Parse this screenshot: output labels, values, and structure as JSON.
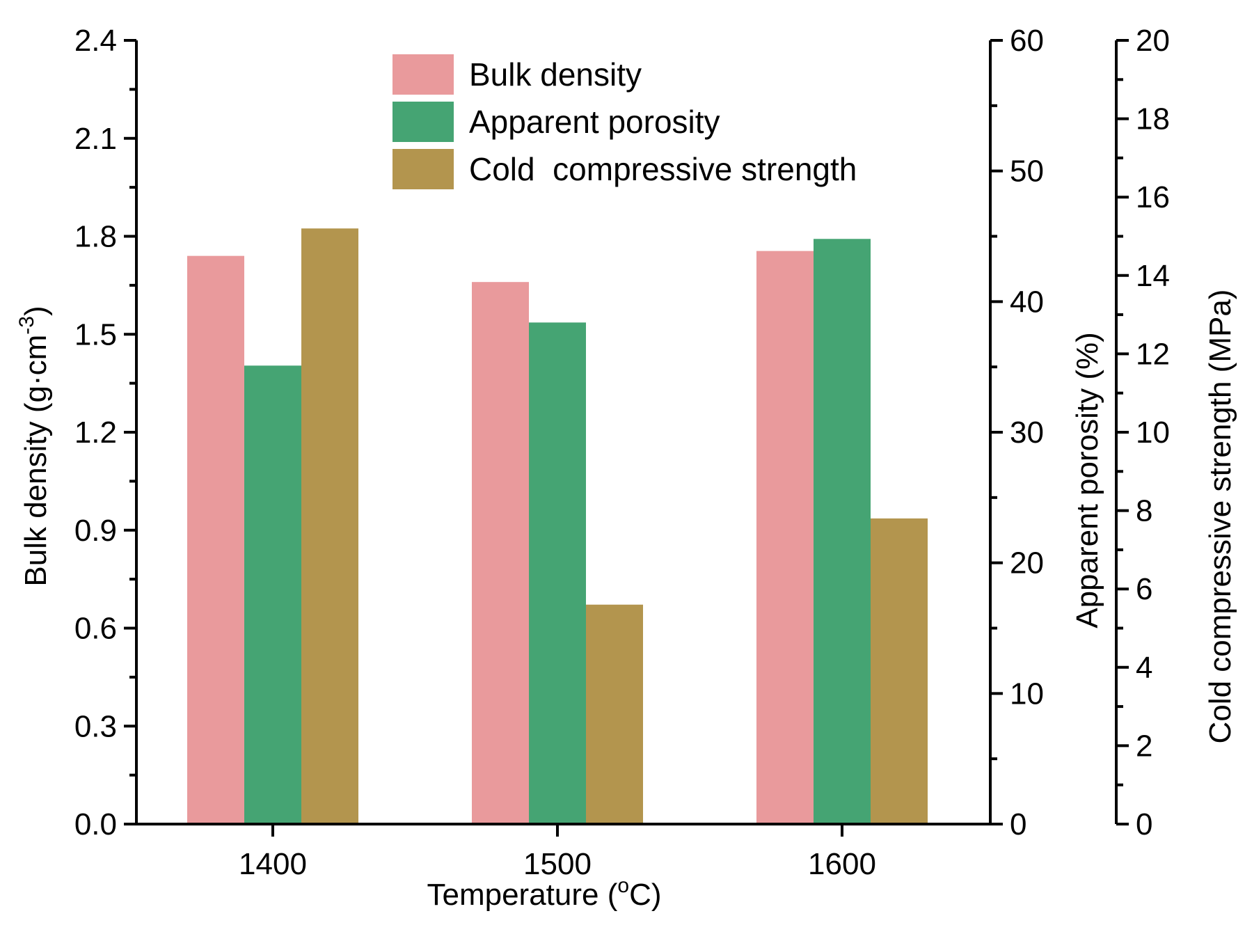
{
  "chart_data": {
    "type": "bar",
    "categories": [
      "1400",
      "1500",
      "1600"
    ],
    "xlabel_main": "Temperature (",
    "xlabel_sup": "o",
    "xlabel_end": "C)",
    "series": [
      {
        "name": "Bulk density",
        "axis": "left",
        "color": "#e99a9c",
        "values": [
          1.74,
          1.66,
          1.755
        ]
      },
      {
        "name": "Apparent porosity",
        "axis": "right1",
        "color": "#45a473",
        "values": [
          35.1,
          38.4,
          44.8
        ]
      },
      {
        "name": "Cold  compressive strength",
        "axis": "right2",
        "color": "#b3954e",
        "values": [
          15.2,
          5.6,
          7.8
        ]
      }
    ],
    "axes": {
      "left": {
        "label_main": "Bulk density (g·cm",
        "label_sup": "-3",
        "label_end": ")",
        "ylim": [
          0,
          2.4
        ],
        "ticks": [
          "0.0",
          "0.3",
          "0.6",
          "0.9",
          "1.2",
          "1.5",
          "1.8",
          "2.1",
          "2.4"
        ],
        "minor_step": 0.15
      },
      "right1": {
        "label": "Apparent porosity (%)",
        "ylim": [
          0,
          60
        ],
        "ticks": [
          "0",
          "10",
          "20",
          "30",
          "40",
          "50",
          "60"
        ],
        "minor_step": 5
      },
      "right2": {
        "label": "Cold compressive strength (MPa)",
        "ylim": [
          0,
          20
        ],
        "ticks": [
          "0",
          "2",
          "4",
          "6",
          "8",
          "10",
          "12",
          "14",
          "16",
          "18",
          "20"
        ],
        "minor_step": 1
      }
    },
    "legend_position": "top-center"
  }
}
